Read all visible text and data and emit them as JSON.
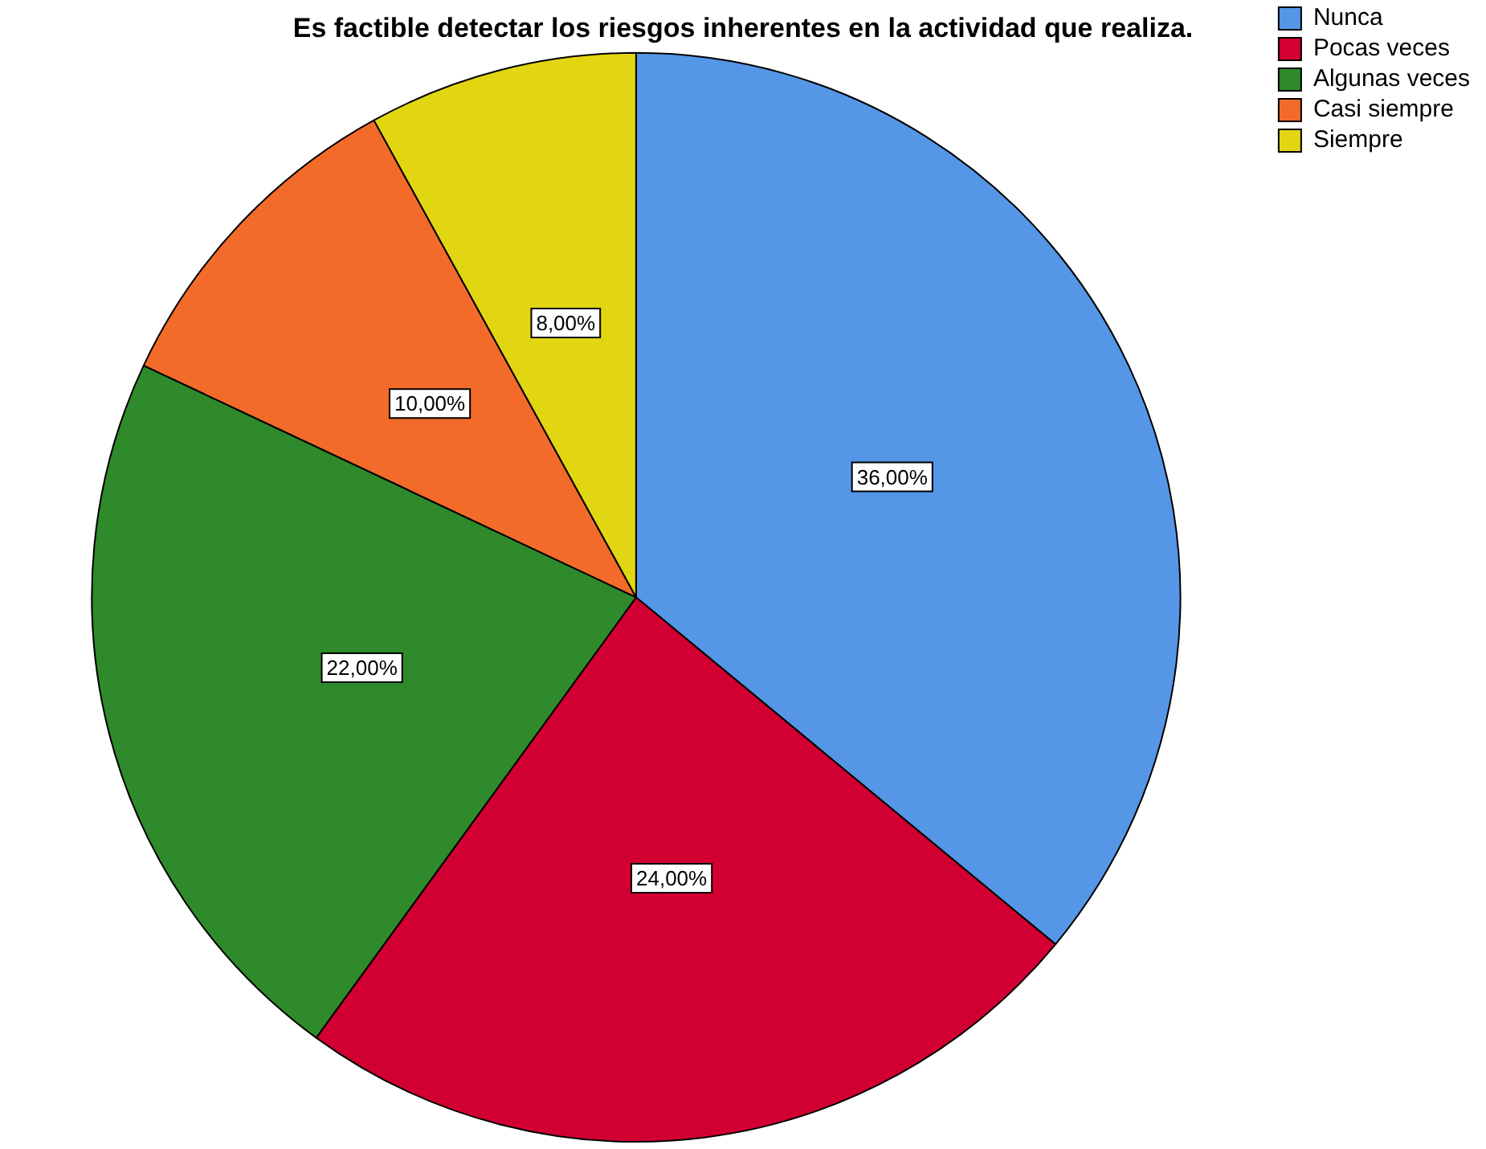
{
  "chart_data": {
    "type": "pie",
    "title": "Es factible detectar los riesgos inherentes en la actividad que realiza.",
    "categories": [
      "Nunca",
      "Pocas veces",
      "Algunas veces",
      "Casi siempre",
      "Siempre"
    ],
    "values": [
      36,
      24,
      22,
      10,
      8
    ],
    "value_labels": [
      "36,00%",
      "24,00%",
      "22,00%",
      "10,00%",
      "8,00%"
    ],
    "colors": [
      "#5596e6",
      "#d20032",
      "#2e8a2a",
      "#f26b2b",
      "#e2d512"
    ],
    "legend": "top right"
  }
}
